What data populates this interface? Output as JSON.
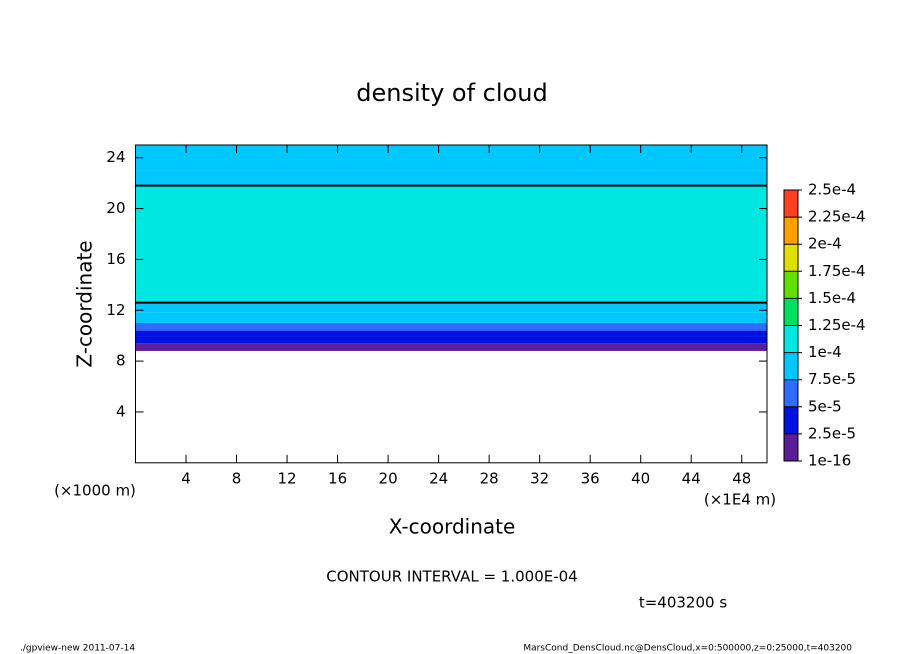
{
  "chart_data": {
    "type": "heatmap",
    "title": "density of cloud",
    "x_label": "X-coordinate",
    "y_label": "Z-coordinate",
    "x_unit": "(×1E4 m)",
    "y_unit": "(×1000 m)",
    "xlim": [
      0,
      50
    ],
    "xticks": [
      4,
      8,
      12,
      16,
      20,
      24,
      28,
      32,
      36,
      40,
      44,
      48
    ],
    "ylim": [
      0,
      25
    ],
    "yticks": [
      4,
      8,
      12,
      16,
      20,
      24
    ],
    "field": {
      "z_edges": [
        8.8,
        9.4,
        9.9,
        10.4,
        11.0,
        11.8,
        12.6,
        21.8,
        23.0,
        25
      ],
      "values": [
        1.5e-05,
        3e-05,
        4e-05,
        6e-05,
        8e-05,
        9e-05,
        0.00011,
        9e-05,
        8e-05
      ]
    },
    "colorbar": {
      "levels": [
        {
          "value": 1e-16,
          "label": "1e-16"
        },
        {
          "value": 2.5e-05,
          "label": "2.5e-5"
        },
        {
          "value": 5e-05,
          "label": "5e-5"
        },
        {
          "value": 7.5e-05,
          "label": "7.5e-5"
        },
        {
          "value": 0.0001,
          "label": "1e-4"
        },
        {
          "value": 0.000125,
          "label": "1.25e-4"
        },
        {
          "value": 0.00015,
          "label": "1.5e-4"
        },
        {
          "value": 0.000175,
          "label": "1.75e-4"
        },
        {
          "value": 0.0002,
          "label": "2e-4"
        },
        {
          "value": 0.000225,
          "label": "2.25e-4"
        },
        {
          "value": 0.00025,
          "label": "2.5e-4"
        }
      ],
      "colors": [
        "#5a1e96",
        "#0010e0",
        "#2f6cff",
        "#00c8ff",
        "#00e6e0",
        "#00e060",
        "#60e000",
        "#e0e000",
        "#ffa000",
        "#ff4020",
        "#ff9898"
      ]
    },
    "contour_level": 0.0001,
    "contour_text": "CONTOUR INTERVAL = 1.000E-04",
    "time_text": "t=403200 s",
    "footer_left": "./gpview-new  2011-07-14",
    "footer_right": "MarsCond_DensCloud.nc@DensCloud,x=0:500000,z=0:25000,t=403200"
  }
}
